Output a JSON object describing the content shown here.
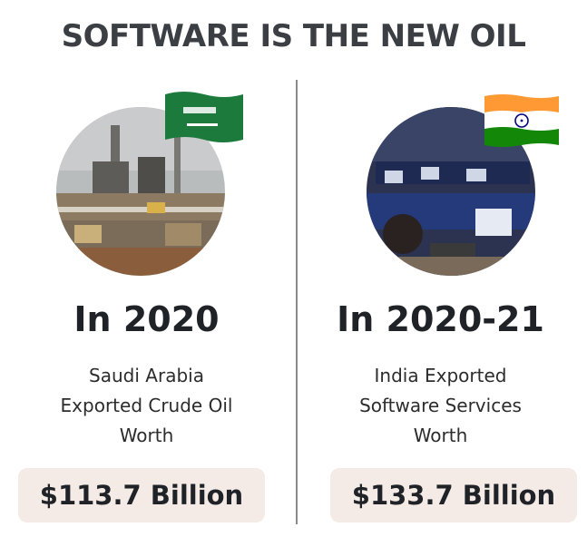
{
  "title": "SOFTWARE IS THE NEW OIL",
  "left": {
    "year": "In 2020",
    "description": [
      "Saudi Arabia",
      "Exported Crude Oil",
      "Worth"
    ],
    "amount": "$113.7 Billion",
    "flag": "saudi-arabia-flag-icon",
    "photo": "oil-refinery-photo"
  },
  "right": {
    "year": "In 2020-21",
    "description": [
      "India Exported",
      "Software Services",
      "Worth"
    ],
    "amount": "$133.7 Billion",
    "flag": "india-flag-icon",
    "photo": "software-office-photo"
  },
  "colors": {
    "title": "#3b3f44",
    "amount_background": "#f5ebe6",
    "saudi_green": "#1c7a3c",
    "india_saffron": "#ff9933",
    "india_green": "#138808",
    "ashoka_blue": "#000080"
  }
}
